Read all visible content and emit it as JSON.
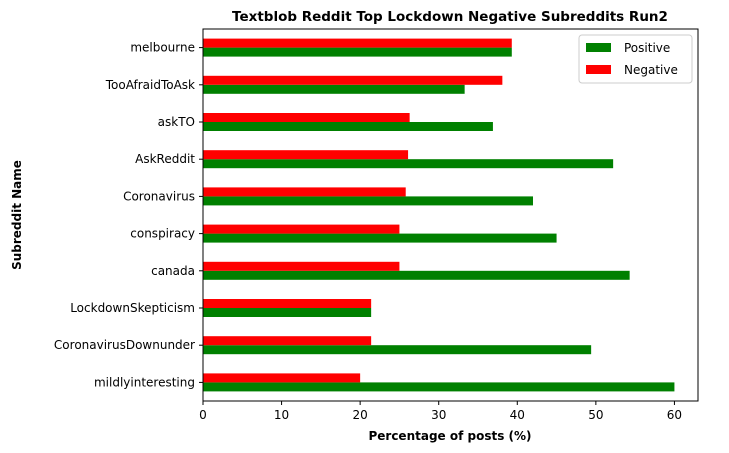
{
  "chart_data": {
    "type": "bar",
    "orientation": "horizontal",
    "title": "Textblob Reddit Top Lockdown Negative Subreddits Run2",
    "xlabel": "Percentage of posts (%)",
    "ylabel": "Subreddit Name",
    "xlim": [
      0,
      63
    ],
    "xticks": [
      0,
      10,
      20,
      30,
      40,
      50,
      60
    ],
    "grid": false,
    "legend_position": "top-right",
    "categories": [
      "melbourne",
      "TooAfraidToAsk",
      "askTO",
      "AskReddit",
      "Coronavirus",
      "conspiracy",
      "canada",
      "LockdownSkepticism",
      "CoronavirusDownunder",
      "mildlyinteresting"
    ],
    "series": [
      {
        "name": "Positive",
        "color": "#008000",
        "values": [
          39.3,
          33.3,
          36.9,
          52.2,
          42.0,
          45.0,
          54.3,
          21.4,
          49.4,
          60.0
        ]
      },
      {
        "name": "Negative",
        "color": "#ff0000",
        "values": [
          39.3,
          38.1,
          26.3,
          26.1,
          25.8,
          25.0,
          25.0,
          21.4,
          21.4,
          20.0
        ]
      }
    ]
  }
}
